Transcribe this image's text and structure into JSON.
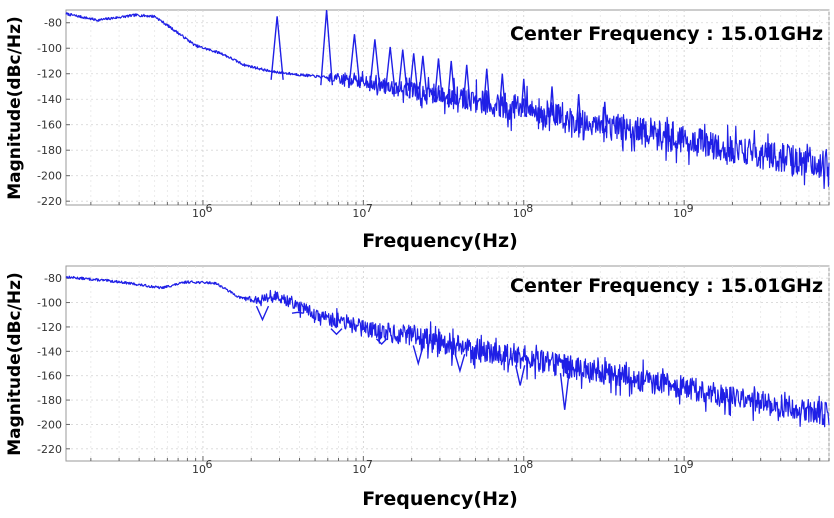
{
  "chart_data": [
    {
      "type": "line",
      "xlabel": "Frequency(Hz)",
      "ylabel": "Magnitude(dBc/Hz)",
      "annotation": "Center Frequency : 15.01GHz",
      "x_scale": "log",
      "xlim": [
        140000,
        8000000000
      ],
      "ylim": [
        -223,
        -70
      ],
      "x_ticks": [
        {
          "value": 1000000,
          "label": "10"
        },
        {
          "value": 10000000,
          "label": "10"
        },
        {
          "value": 100000000,
          "label": "10"
        },
        {
          "value": 1000000000,
          "label": "10"
        }
      ],
      "x_tick_exponents": [
        "6",
        "7",
        "8",
        "9"
      ],
      "y_ticks": [
        -80,
        -100,
        -120,
        -140,
        -160,
        -180,
        -200,
        -220
      ],
      "grid": true,
      "color": "#1f1fe6",
      "trend": {
        "x": [
          140000,
          220000,
          380000,
          500000,
          700000,
          900000,
          1300000,
          1800000,
          2600000,
          3500000,
          5000000,
          7000000,
          10000000,
          20000000,
          50000000,
          100000000,
          300000000,
          1000000000,
          3000000000,
          8000000000
        ],
        "y": [
          -73,
          -78,
          -74,
          -75,
          -88,
          -98,
          -104,
          -113,
          -118,
          -120,
          -122,
          -124,
          -126,
          -133,
          -141,
          -148,
          -160,
          -172,
          -183,
          -192
        ]
      },
      "noise_amplitude_db": 14,
      "noise_start_hz": 6000000,
      "spurs": [
        {
          "x": 2900000,
          "y": -75
        },
        {
          "x": 5900000,
          "y": -70
        },
        {
          "x": 8800000,
          "y": -89
        },
        {
          "x": 11800000,
          "y": -93
        },
        {
          "x": 14700000,
          "y": -99
        },
        {
          "x": 17600000,
          "y": -101
        },
        {
          "x": 20600000,
          "y": -104
        },
        {
          "x": 23500000,
          "y": -106
        },
        {
          "x": 29400000,
          "y": -108
        },
        {
          "x": 35300000,
          "y": -110
        },
        {
          "x": 44100000,
          "y": -113
        },
        {
          "x": 58800000,
          "y": -116
        },
        {
          "x": 73500000,
          "y": -120
        },
        {
          "x": 100000000,
          "y": -124
        },
        {
          "x": 150000000,
          "y": -130
        },
        {
          "x": 220000000,
          "y": -136
        },
        {
          "x": 320000000,
          "y": -142
        }
      ]
    },
    {
      "type": "line",
      "xlabel": "Frequency(Hz)",
      "ylabel": "Magnitude(dBc/Hz)",
      "annotation": "Center Frequency : 15.01GHz",
      "x_scale": "log",
      "xlim": [
        140000,
        8000000000
      ],
      "ylim": [
        -230,
        -70
      ],
      "x_ticks": [
        {
          "value": 1000000,
          "label": "10"
        },
        {
          "value": 10000000,
          "label": "10"
        },
        {
          "value": 100000000,
          "label": "10"
        },
        {
          "value": 1000000000,
          "label": "10"
        }
      ],
      "x_tick_exponents": [
        "6",
        "7",
        "8",
        "9"
      ],
      "y_ticks": [
        -80,
        -100,
        -120,
        -140,
        -160,
        -180,
        -200,
        -220
      ],
      "grid": true,
      "color": "#1f1fe6",
      "trend": {
        "x": [
          140000,
          300000,
          550000,
          800000,
          1200000,
          1700000,
          2200000,
          2800000,
          3500000,
          5000000,
          7000000,
          10000000,
          20000000,
          50000000,
          100000000,
          300000000,
          1000000000,
          3000000000,
          8000000000
        ],
        "y": [
          -79,
          -83,
          -88,
          -83,
          -84,
          -96,
          -98,
          -94,
          -100,
          -109,
          -116,
          -121,
          -128,
          -139,
          -146,
          -157,
          -170,
          -182,
          -192
        ]
      },
      "noise_amplitude_db": 12,
      "noise_start_hz": 1800000,
      "spurs": [
        {
          "x": 2350000,
          "y": -114
        },
        {
          "x": 3900000,
          "y": -108
        },
        {
          "x": 6800000,
          "y": -126
        },
        {
          "x": 13000000,
          "y": -134
        },
        {
          "x": 22000000,
          "y": -150
        },
        {
          "x": 40000000,
          "y": -156
        },
        {
          "x": 95000000,
          "y": -168
        },
        {
          "x": 180000000,
          "y": -188
        }
      ]
    }
  ]
}
